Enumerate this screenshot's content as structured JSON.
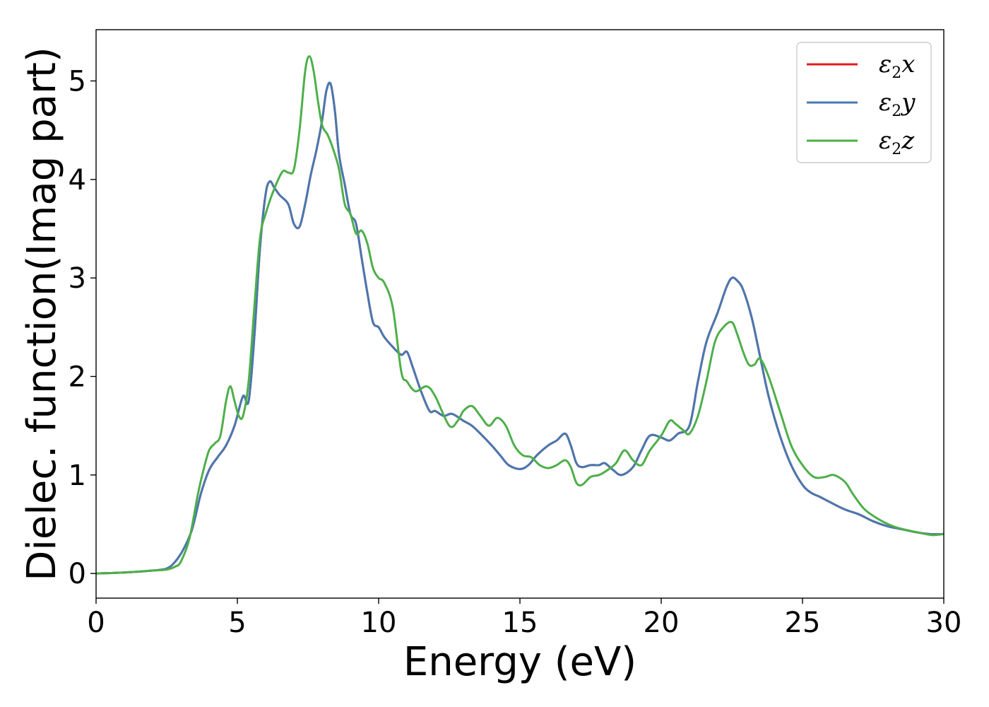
{
  "chart_data": {
    "type": "line",
    "title": "",
    "xlabel": "Energy (eV)",
    "ylabel": "Dielec. function(Imag part)",
    "xlim": [
      0,
      30
    ],
    "ylim": [
      -0.25,
      5.52
    ],
    "xticks": [
      0,
      5,
      10,
      15,
      20,
      25,
      30
    ],
    "yticks": [
      0,
      1,
      2,
      3,
      4,
      5
    ],
    "grid": false,
    "legend_position": "top-right",
    "series": [
      {
        "name": "ε2x",
        "symbol": "ε",
        "sub": "2",
        "axis": "x",
        "color": "#e41a1c",
        "x": [
          0,
          1,
          2,
          2.5,
          2.8,
          3.1,
          3.4,
          3.7,
          4.0,
          4.3,
          4.6,
          4.9,
          5.2,
          5.4,
          5.6,
          5.8,
          6.0,
          6.15,
          6.3,
          6.5,
          6.8,
          7.0,
          7.2,
          7.4,
          7.6,
          7.8,
          8.0,
          8.15,
          8.3,
          8.45,
          8.6,
          8.8,
          9.0,
          9.2,
          9.4,
          9.6,
          9.8,
          10.0,
          10.2,
          10.5,
          10.8,
          11.0,
          11.2,
          11.5,
          11.8,
          12.0,
          12.3,
          12.6,
          13.0,
          13.3,
          13.6,
          14.0,
          14.3,
          14.6,
          15.0,
          15.3,
          15.6,
          16.0,
          16.3,
          16.6,
          16.8,
          17.0,
          17.2,
          17.5,
          17.8,
          18.0,
          18.3,
          18.6,
          19.0,
          19.3,
          19.6,
          20.0,
          20.3,
          20.6,
          21.0,
          21.3,
          21.6,
          22.0,
          22.3,
          22.5,
          22.7,
          22.9,
          23.2,
          23.5,
          23.8,
          24.2,
          24.6,
          25.0,
          25.3,
          25.6,
          26.0,
          26.5,
          27.0,
          27.5,
          28.0,
          28.5,
          29.0,
          29.5,
          30.0
        ],
        "y": [
          0,
          0.01,
          0.03,
          0.05,
          0.12,
          0.25,
          0.45,
          0.8,
          1.05,
          1.18,
          1.3,
          1.5,
          1.8,
          1.75,
          2.4,
          3.3,
          3.85,
          3.98,
          3.92,
          3.84,
          3.75,
          3.55,
          3.52,
          3.75,
          4.05,
          4.3,
          4.6,
          4.9,
          4.97,
          4.7,
          4.25,
          3.95,
          3.65,
          3.55,
          3.2,
          2.85,
          2.55,
          2.5,
          2.4,
          2.3,
          2.22,
          2.25,
          2.1,
          1.85,
          1.65,
          1.65,
          1.6,
          1.62,
          1.55,
          1.5,
          1.42,
          1.3,
          1.2,
          1.1,
          1.06,
          1.1,
          1.2,
          1.3,
          1.35,
          1.42,
          1.3,
          1.12,
          1.08,
          1.1,
          1.1,
          1.12,
          1.05,
          1.0,
          1.08,
          1.25,
          1.4,
          1.38,
          1.35,
          1.42,
          1.5,
          1.95,
          2.35,
          2.65,
          2.9,
          3.0,
          2.97,
          2.88,
          2.6,
          2.2,
          1.8,
          1.4,
          1.1,
          0.9,
          0.82,
          0.78,
          0.72,
          0.65,
          0.6,
          0.53,
          0.48,
          0.45,
          0.42,
          0.4,
          0.4
        ]
      },
      {
        "name": "ε2y",
        "symbol": "ε",
        "sub": "2",
        "axis": "y",
        "color": "#4878b0",
        "x": [
          0,
          1,
          2,
          2.5,
          2.8,
          3.1,
          3.4,
          3.7,
          4.0,
          4.3,
          4.6,
          4.9,
          5.2,
          5.4,
          5.6,
          5.8,
          6.0,
          6.15,
          6.3,
          6.5,
          6.8,
          7.0,
          7.2,
          7.4,
          7.6,
          7.8,
          8.0,
          8.15,
          8.3,
          8.45,
          8.6,
          8.8,
          9.0,
          9.2,
          9.4,
          9.6,
          9.8,
          10.0,
          10.2,
          10.5,
          10.8,
          11.0,
          11.2,
          11.5,
          11.8,
          12.0,
          12.3,
          12.6,
          13.0,
          13.3,
          13.6,
          14.0,
          14.3,
          14.6,
          15.0,
          15.3,
          15.6,
          16.0,
          16.3,
          16.6,
          16.8,
          17.0,
          17.2,
          17.5,
          17.8,
          18.0,
          18.3,
          18.6,
          19.0,
          19.3,
          19.6,
          20.0,
          20.3,
          20.6,
          21.0,
          21.3,
          21.6,
          22.0,
          22.3,
          22.5,
          22.7,
          22.9,
          23.2,
          23.5,
          23.8,
          24.2,
          24.6,
          25.0,
          25.3,
          25.6,
          26.0,
          26.5,
          27.0,
          27.5,
          28.0,
          28.5,
          29.0,
          29.5,
          30.0
        ],
        "y": [
          0,
          0.01,
          0.03,
          0.05,
          0.12,
          0.25,
          0.45,
          0.8,
          1.05,
          1.18,
          1.3,
          1.5,
          1.8,
          1.75,
          2.4,
          3.3,
          3.85,
          3.98,
          3.92,
          3.84,
          3.75,
          3.55,
          3.52,
          3.75,
          4.05,
          4.3,
          4.6,
          4.9,
          4.97,
          4.7,
          4.25,
          3.95,
          3.65,
          3.55,
          3.2,
          2.85,
          2.55,
          2.5,
          2.4,
          2.3,
          2.22,
          2.25,
          2.1,
          1.85,
          1.65,
          1.65,
          1.6,
          1.62,
          1.55,
          1.5,
          1.42,
          1.3,
          1.2,
          1.1,
          1.06,
          1.1,
          1.2,
          1.3,
          1.35,
          1.42,
          1.3,
          1.12,
          1.08,
          1.1,
          1.1,
          1.12,
          1.05,
          1.0,
          1.08,
          1.25,
          1.4,
          1.38,
          1.35,
          1.42,
          1.5,
          1.95,
          2.35,
          2.65,
          2.9,
          3.0,
          2.97,
          2.88,
          2.6,
          2.2,
          1.8,
          1.4,
          1.1,
          0.9,
          0.82,
          0.78,
          0.72,
          0.65,
          0.6,
          0.53,
          0.48,
          0.45,
          0.42,
          0.4,
          0.4
        ]
      },
      {
        "name": "ε2z",
        "symbol": "ε",
        "sub": "2",
        "axis": "z",
        "color": "#4daf4a",
        "x": [
          0,
          1,
          2,
          2.5,
          2.8,
          3.0,
          3.3,
          3.6,
          3.8,
          4.0,
          4.2,
          4.4,
          4.6,
          4.75,
          4.9,
          5.05,
          5.2,
          5.4,
          5.6,
          5.8,
          6.0,
          6.3,
          6.6,
          6.8,
          7.0,
          7.2,
          7.4,
          7.55,
          7.7,
          7.85,
          8.0,
          8.2,
          8.4,
          8.6,
          8.8,
          9.0,
          9.2,
          9.4,
          9.6,
          9.8,
          10.0,
          10.2,
          10.5,
          10.8,
          11.0,
          11.3,
          11.7,
          12.0,
          12.5,
          12.8,
          13.0,
          13.3,
          13.6,
          13.9,
          14.2,
          14.5,
          14.8,
          15.1,
          15.4,
          15.7,
          16.0,
          16.3,
          16.6,
          16.8,
          17.0,
          17.2,
          17.5,
          17.8,
          18.1,
          18.4,
          18.7,
          19.0,
          19.3,
          19.6,
          20.0,
          20.3,
          20.5,
          20.8,
          21.0,
          21.3,
          21.6,
          21.9,
          22.2,
          22.5,
          22.7,
          22.9,
          23.1,
          23.3,
          23.5,
          23.8,
          24.2,
          24.6,
          25.0,
          25.4,
          25.8,
          26.1,
          26.5,
          26.8,
          27.2,
          27.7,
          28.2,
          28.7,
          29.2,
          29.6,
          30.0
        ],
        "y": [
          0,
          0.01,
          0.03,
          0.04,
          0.07,
          0.12,
          0.35,
          0.8,
          1.05,
          1.25,
          1.32,
          1.4,
          1.75,
          1.9,
          1.75,
          1.6,
          1.6,
          1.95,
          2.7,
          3.4,
          3.65,
          3.9,
          4.08,
          4.07,
          4.1,
          4.5,
          5.1,
          5.25,
          5.1,
          4.8,
          4.55,
          4.45,
          4.3,
          4.1,
          3.75,
          3.65,
          3.45,
          3.48,
          3.35,
          3.1,
          3.0,
          2.95,
          2.7,
          2.05,
          1.95,
          1.85,
          1.9,
          1.8,
          1.5,
          1.55,
          1.65,
          1.7,
          1.6,
          1.5,
          1.58,
          1.5,
          1.3,
          1.2,
          1.18,
          1.1,
          1.07,
          1.1,
          1.15,
          1.08,
          0.92,
          0.9,
          0.98,
          1.0,
          1.05,
          1.12,
          1.25,
          1.15,
          1.1,
          1.25,
          1.4,
          1.55,
          1.52,
          1.45,
          1.42,
          1.6,
          1.95,
          2.35,
          2.5,
          2.55,
          2.42,
          2.25,
          2.12,
          2.12,
          2.18,
          2.0,
          1.65,
          1.3,
          1.1,
          0.98,
          0.98,
          1.0,
          0.93,
          0.8,
          0.65,
          0.55,
          0.48,
          0.44,
          0.41,
          0.39,
          0.4
        ]
      }
    ]
  }
}
